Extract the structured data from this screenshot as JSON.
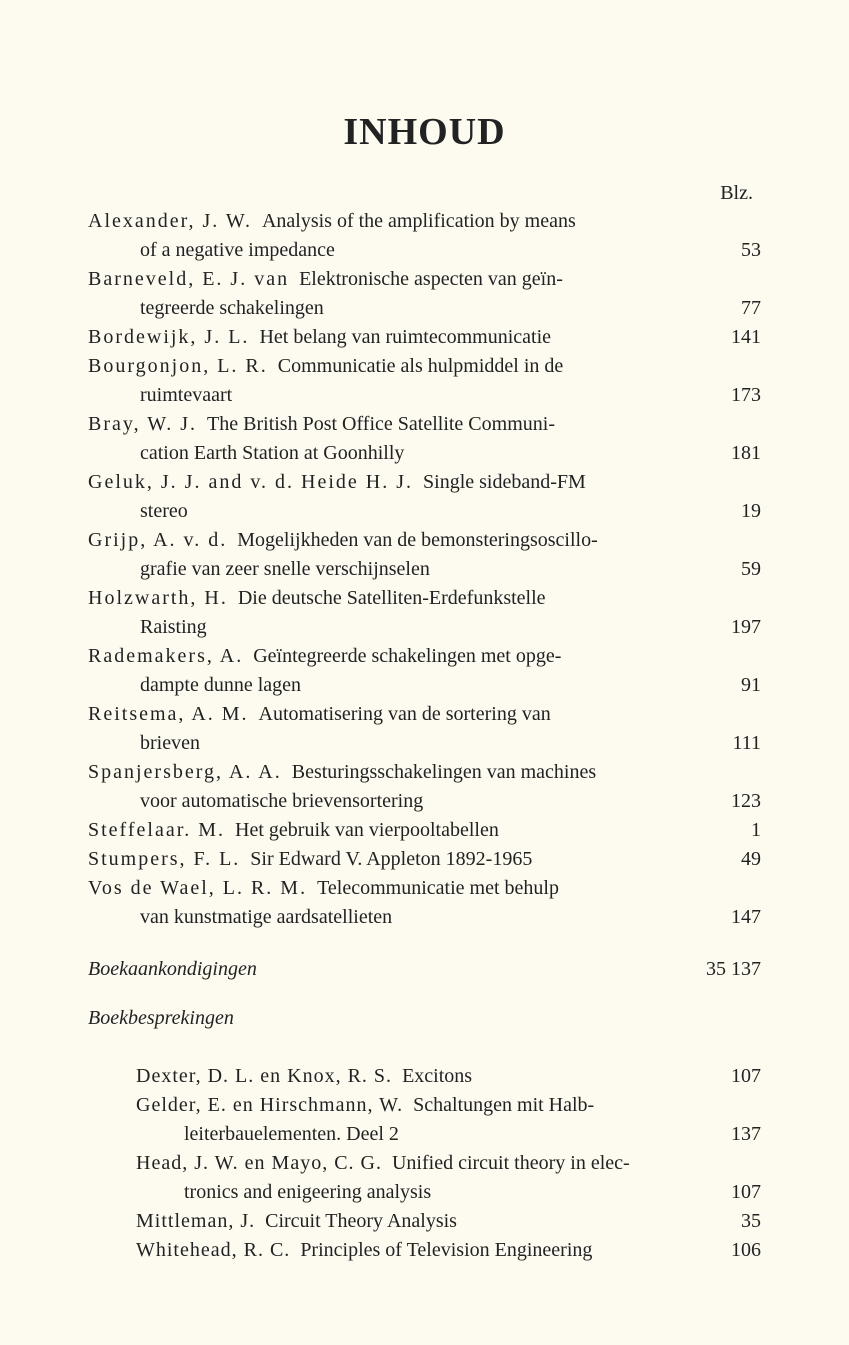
{
  "colors": {
    "background": "#fdfaf0",
    "text": "#222222"
  },
  "typography": {
    "title_fontsize": 38,
    "entry_fontsize": 20,
    "review_fontsize": 17.5,
    "font_family": "Georgia, Times New Roman, serif",
    "author_letterspacing_main": 2,
    "author_letterspacing_reviews": 1
  },
  "title": "INHOUD",
  "page_header": "Blz.",
  "entries": [
    {
      "author": "Alexander, J. W.",
      "line1": "Analysis of the amplification by means",
      "cont": "of a negative impedance",
      "page": "53"
    },
    {
      "author": "Barneveld, E. J. van",
      "line1": "Elektronische aspecten van geïn-",
      "cont": "tegreerde schakelingen",
      "page": "77"
    },
    {
      "author": "Bordewijk, J. L.",
      "line1": "Het belang van ruimtecommunicatie",
      "cont": "",
      "page": "141"
    },
    {
      "author": "Bourgonjon, L. R.",
      "line1": "Communicatie als hulpmiddel in de",
      "cont": "ruimtevaart",
      "page": "173"
    },
    {
      "author": "Bray, W. J.",
      "line1": "The British Post Office Satellite Communi-",
      "cont": "cation Earth Station at Goonhilly",
      "page": "181"
    },
    {
      "author": "Geluk, J. J. and v. d. Heide H. J.",
      "line1": "Single sideband-FM",
      "cont": "stereo",
      "page": "19"
    },
    {
      "author": "Grijp, A. v. d.",
      "line1": "Mogelijkheden van de bemonsteringsoscillo-",
      "cont": "grafie van zeer snelle verschijnselen",
      "page": "59"
    },
    {
      "author": "Holzwarth, H.",
      "line1": "Die deutsche Satelliten-Erdefunkstelle",
      "cont": "Raisting",
      "page": "197"
    },
    {
      "author": "Rademakers, A.",
      "line1": "Geïntegreerde schakelingen met opge-",
      "cont": "dampte dunne lagen",
      "page": "91"
    },
    {
      "author": "Reitsema, A. M.",
      "line1": "Automatisering van de sortering van",
      "cont": "brieven",
      "page": "111"
    },
    {
      "author": "Spanjersberg, A. A.",
      "line1": "Besturingsschakelingen van machines",
      "cont": "voor automatische brievensortering",
      "page": "123"
    },
    {
      "author": "Steffelaar. M.",
      "line1": "Het gebruik van vierpooltabellen",
      "cont": "",
      "page": "1"
    },
    {
      "author": "Stumpers, F. L.",
      "line1": "Sir Edward V. Appleton 1892-1965",
      "cont": "",
      "page": "49"
    },
    {
      "author": "Vos de Wael, L. R. M.",
      "line1": "Telecommunicatie met behulp",
      "cont": "van kunstmatige aardsatellieten",
      "page": "147"
    }
  ],
  "sections": {
    "boekaankondigingen": {
      "label": "Boekaankondigingen",
      "pages": "35  137"
    },
    "boekbesprekingen": {
      "label": "Boekbesprekingen"
    }
  },
  "reviews": [
    {
      "author": "Dexter, D. L. en Knox, R. S.",
      "line1": "Excitons",
      "cont": "",
      "page": "107"
    },
    {
      "author": "Gelder, E. en Hirschmann, W.",
      "line1": "Schaltungen mit Halb-",
      "cont": "leiterbauelementen. Deel 2",
      "page": "137"
    },
    {
      "author": "Head, J. W. en Mayo, C. G.",
      "line1": "Unified circuit theory in elec-",
      "cont": "tronics and enigeering analysis",
      "page": "107"
    },
    {
      "author": "Mittleman, J.",
      "line1": "Circuit Theory Analysis",
      "cont": "",
      "page": "35"
    },
    {
      "author": "Whitehead, R. C.",
      "line1": "Principles of Television Engineering",
      "cont": "",
      "page": "106"
    }
  ]
}
